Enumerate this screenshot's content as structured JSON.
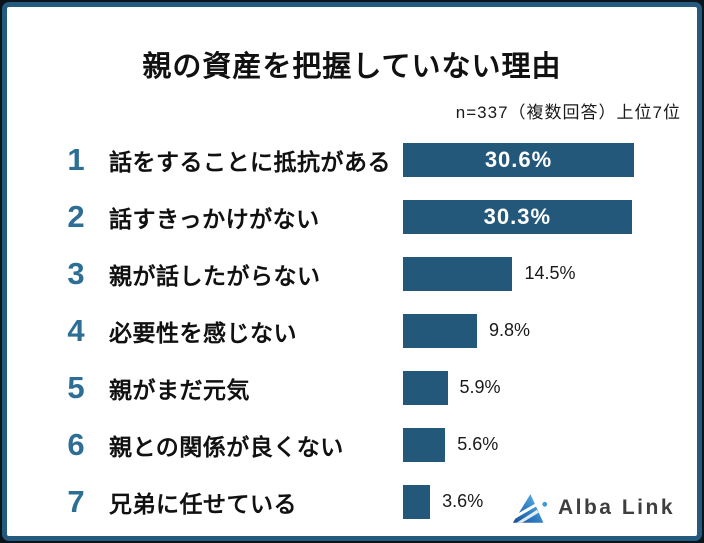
{
  "header": {
    "title": "親の資産を把握していない理由",
    "note": "n=337（複数回答）上位7位"
  },
  "chart_data": {
    "type": "bar",
    "orientation": "horizontal",
    "title": "親の資産を把握していない理由",
    "subtitle": "n=337（複数回答）上位7位",
    "sample_size": 337,
    "unit": "%",
    "categories": [
      "話をすることに抵抗がある",
      "話すきっかけがない",
      "親が話したがらない",
      "必要性を感じない",
      "親がまだ元気",
      "親との関係が良くない",
      "兄弟に任せている"
    ],
    "ranks": [
      1,
      2,
      3,
      4,
      5,
      6,
      7
    ],
    "values": [
      30.6,
      30.3,
      14.5,
      9.8,
      5.9,
      5.6,
      3.6
    ],
    "value_labels": [
      "30.6%",
      "30.3%",
      "14.5%",
      "9.8%",
      "5.9%",
      "5.6%",
      "3.6%"
    ],
    "labels_inside": [
      true,
      true,
      false,
      false,
      false,
      false,
      false
    ],
    "xlim": [
      0,
      33
    ],
    "grid": false,
    "legend": null,
    "xlabel": "",
    "ylabel": ""
  },
  "colors": {
    "bar": "#24587b",
    "rank_number": "#2c6e94",
    "frame_border": "#235a7d",
    "frame_outer": "#0b141b",
    "value_inside_text": "#ffffff",
    "value_outside_text": "#1a1a1a",
    "title_text": "#111111",
    "logo_text": "#3e3e3e"
  },
  "logo": {
    "text": "Alba Link"
  }
}
